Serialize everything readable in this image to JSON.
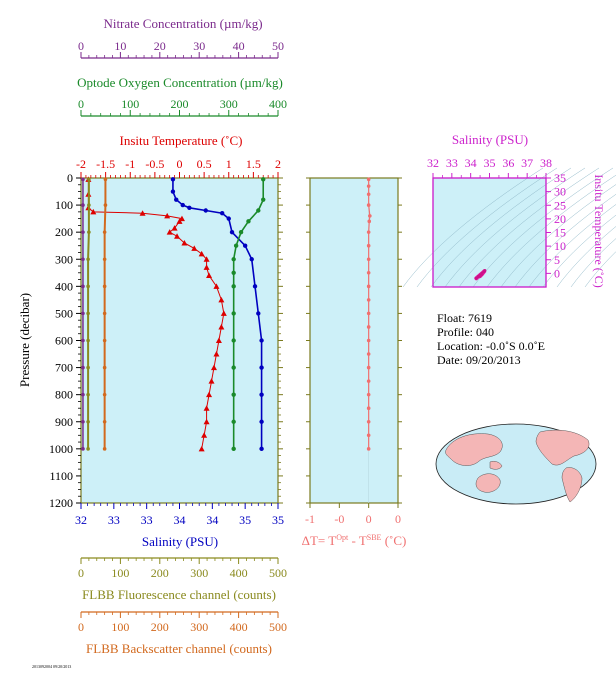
{
  "colors": {
    "nitrate": "#7b2a8c",
    "oxygen": "#1a8a2a",
    "temperature": "#dd0000",
    "salinity": "#0000c0",
    "fluorescence": "#8a8a1e",
    "backscatter": "#d2691e",
    "delta_t": "#f07070",
    "ts_axis": "#cc22cc",
    "plot_bg": "#cdf0f8",
    "axis_frame": "#7a7a1e"
  },
  "labels": {
    "nitrate_axis": "Nitrate Concentration (µm/kg)",
    "oxygen_axis": "Optode Oxygen Concentration (µm/kg)",
    "temperature_axis": "Insitu Temperature (˚C)",
    "pressure_axis": "Pressure (decibar)",
    "salinity_axis": "Salinity (PSU)",
    "fluorescence_axis": "FLBB Fluorescence channel (counts)",
    "backscatter_axis": "FLBB Backscatter channel (counts)",
    "delta_t_prefix": "ΔT= T",
    "delta_t_sup1": "Opt",
    "delta_t_mid": " - T",
    "delta_t_sup2": "SBE",
    "delta_t_suffix": " (˚C)",
    "ts_salinity": "Salinity (PSU)",
    "ts_temperature": "Insitu Temperature (˚C)",
    "footer": "2013092004 09/20/2013"
  },
  "info": {
    "float": "Float:  7619",
    "profile": "Profile:  040",
    "location": "Location:  -0.0˚S   0.0˚E",
    "date": "Date:  09/20/2013"
  },
  "chart_data": [
    {
      "type": "line",
      "title": "",
      "ylabel": "Pressure (decibar)",
      "ylim": [
        1200,
        0
      ],
      "y_ticks": [
        0,
        100,
        200,
        300,
        400,
        500,
        600,
        700,
        800,
        900,
        1000,
        1100,
        1200
      ],
      "x_axes": [
        {
          "key": "nitrate",
          "label": "Nitrate Concentration (µm/kg)",
          "range": [
            0,
            50
          ],
          "ticks": [
            0,
            10,
            20,
            30,
            40,
            50
          ]
        },
        {
          "key": "oxygen",
          "label": "Optode Oxygen Concentration (µm/kg)",
          "range": [
            0,
            400
          ],
          "ticks": [
            0,
            100,
            200,
            300,
            400
          ]
        },
        {
          "key": "temperature",
          "label": "Insitu Temperature (˚C)",
          "range": [
            -2,
            2
          ],
          "ticks": [
            -2,
            -1.5,
            -1,
            -0.5,
            0,
            0.5,
            1,
            1.5,
            2
          ],
          "tick_labels": [
            "-2",
            "-1.5",
            "-1",
            "-0.5",
            "0",
            "0.5",
            "1",
            "1.5",
            "2"
          ]
        },
        {
          "key": "salinity",
          "label": "Salinity (PSU)",
          "range": [
            32,
            35
          ],
          "ticks": [
            32,
            32.5,
            33,
            33.5,
            34,
            34.5,
            35
          ],
          "tick_labels": [
            "32",
            "33",
            "33",
            "34",
            "34",
            "35",
            "35"
          ]
        },
        {
          "key": "fluorescence",
          "label": "FLBB Fluorescence channel (counts)",
          "range": [
            0,
            500
          ],
          "ticks": [
            0,
            100,
            200,
            300,
            400,
            500
          ]
        },
        {
          "key": "backscatter",
          "label": "FLBB Backscatter channel (counts)",
          "range": [
            0,
            500
          ],
          "ticks": [
            0,
            100,
            200,
            300,
            400,
            500
          ]
        }
      ],
      "series": [
        {
          "key": "temperature",
          "marker": "triangle",
          "points": [
            [
              -1.85,
              5
            ],
            [
              -1.85,
              60
            ],
            [
              -1.85,
              110
            ],
            [
              -1.75,
              125
            ],
            [
              -0.75,
              130
            ],
            [
              -0.25,
              140
            ],
            [
              0.05,
              150
            ],
            [
              0.0,
              160
            ],
            [
              -0.1,
              185
            ],
            [
              -0.2,
              200
            ],
            [
              -0.05,
              215
            ],
            [
              0.1,
              240
            ],
            [
              0.3,
              260
            ],
            [
              0.45,
              280
            ],
            [
              0.55,
              300
            ],
            [
              0.55,
              330
            ],
            [
              0.6,
              360
            ],
            [
              0.75,
              400
            ],
            [
              0.85,
              450
            ],
            [
              0.9,
              500
            ],
            [
              0.85,
              550
            ],
            [
              0.8,
              600
            ],
            [
              0.75,
              650
            ],
            [
              0.7,
              700
            ],
            [
              0.65,
              750
            ],
            [
              0.6,
              800
            ],
            [
              0.55,
              850
            ],
            [
              0.55,
              900
            ],
            [
              0.5,
              950
            ],
            [
              0.45,
              1000
            ]
          ]
        },
        {
          "key": "salinity",
          "points": [
            [
              33.4,
              5
            ],
            [
              33.4,
              50
            ],
            [
              33.45,
              80
            ],
            [
              33.55,
              100
            ],
            [
              33.65,
              110
            ],
            [
              33.9,
              120
            ],
            [
              34.15,
              130
            ],
            [
              34.25,
              150
            ],
            [
              34.3,
              200
            ],
            [
              34.5,
              250
            ],
            [
              34.6,
              300
            ],
            [
              34.65,
              400
            ],
            [
              34.7,
              500
            ],
            [
              34.75,
              600
            ],
            [
              34.75,
              700
            ],
            [
              34.75,
              800
            ],
            [
              34.75,
              900
            ],
            [
              34.75,
              1000
            ]
          ]
        },
        {
          "key": "oxygen",
          "points": [
            [
              370,
              5
            ],
            [
              370,
              80
            ],
            [
              360,
              120
            ],
            [
              340,
              160
            ],
            [
              325,
              200
            ],
            [
              315,
              250
            ],
            [
              310,
              300
            ],
            [
              310,
              350
            ],
            [
              310,
              400
            ],
            [
              310,
              500
            ],
            [
              310,
              600
            ],
            [
              310,
              700
            ],
            [
              310,
              800
            ],
            [
              310,
              900
            ],
            [
              310,
              1000
            ]
          ]
        },
        {
          "key": "fluorescence",
          "marker": "dot",
          "points": [
            [
              20,
              5
            ],
            [
              20,
              100
            ],
            [
              20,
              200
            ],
            [
              18,
              300
            ],
            [
              18,
              400
            ],
            [
              18,
              500
            ],
            [
              18,
              600
            ],
            [
              18,
              700
            ],
            [
              18,
              800
            ],
            [
              18,
              900
            ],
            [
              18,
              1000
            ]
          ]
        },
        {
          "key": "nitrate",
          "marker": "dot",
          "points": [
            [
              0.5,
              5
            ],
            [
              0.5,
              100
            ],
            [
              0.5,
              200
            ],
            [
              0.5,
              300
            ],
            [
              0.5,
              400
            ],
            [
              0.5,
              500
            ],
            [
              0.5,
              600
            ],
            [
              0.5,
              700
            ],
            [
              0.5,
              800
            ],
            [
              0.5,
              900
            ],
            [
              0.5,
              1000
            ]
          ]
        },
        {
          "key": "backscatter",
          "marker": "dot",
          "points": [
            [
              62,
              5
            ],
            [
              62,
              100
            ],
            [
              60,
              200
            ],
            [
              60,
              300
            ],
            [
              60,
              400
            ],
            [
              60,
              500
            ],
            [
              60,
              600
            ],
            [
              60,
              700
            ],
            [
              60,
              800
            ],
            [
              60,
              900
            ],
            [
              60,
              1000
            ]
          ]
        }
      ]
    },
    {
      "type": "line",
      "title": "",
      "xlabel": "ΔT= T^Opt - T^SBE (˚C)",
      "xlim": [
        -1,
        0
      ],
      "x_ticks": [
        -1,
        -0.5,
        0,
        0.5
      ],
      "x_tick_labels": [
        "-1",
        "-0",
        "0",
        "0"
      ],
      "ylim": [
        1200,
        0
      ],
      "series": [
        {
          "key": "delta_t",
          "marker": "dot",
          "points": [
            [
              0,
              5
            ],
            [
              0,
              30
            ],
            [
              0,
              60
            ],
            [
              0,
              100
            ],
            [
              0.02,
              140
            ],
            [
              0.01,
              160
            ],
            [
              0,
              200
            ],
            [
              0,
              250
            ],
            [
              0,
              300
            ],
            [
              0,
              350
            ],
            [
              0,
              400
            ],
            [
              0,
              450
            ],
            [
              0,
              500
            ],
            [
              0,
              550
            ],
            [
              0,
              600
            ],
            [
              0,
              650
            ],
            [
              0,
              700
            ],
            [
              0,
              750
            ],
            [
              0,
              800
            ],
            [
              0,
              850
            ],
            [
              0,
              900
            ],
            [
              0,
              950
            ],
            [
              0,
              1000
            ]
          ]
        }
      ]
    },
    {
      "type": "scatter",
      "title": "",
      "xlabel": "Salinity (PSU)",
      "ylabel": "Insitu Temperature (˚C)",
      "xlim": [
        32,
        38
      ],
      "ylim": [
        -5,
        35
      ],
      "x_ticks": [
        32,
        33,
        34,
        35,
        36,
        37,
        38
      ],
      "y_ticks": [
        0,
        5,
        10,
        15,
        20,
        25,
        30,
        35
      ],
      "series": [
        {
          "key": "ts",
          "points": [
            [
              34.3,
              -1.8
            ],
            [
              34.4,
              -1.2
            ],
            [
              34.5,
              -0.6
            ],
            [
              34.6,
              0
            ],
            [
              34.7,
              0.6
            ],
            [
              34.75,
              1.0
            ],
            [
              34.6,
              -0.3
            ],
            [
              34.5,
              -1.0
            ]
          ]
        }
      ]
    }
  ]
}
